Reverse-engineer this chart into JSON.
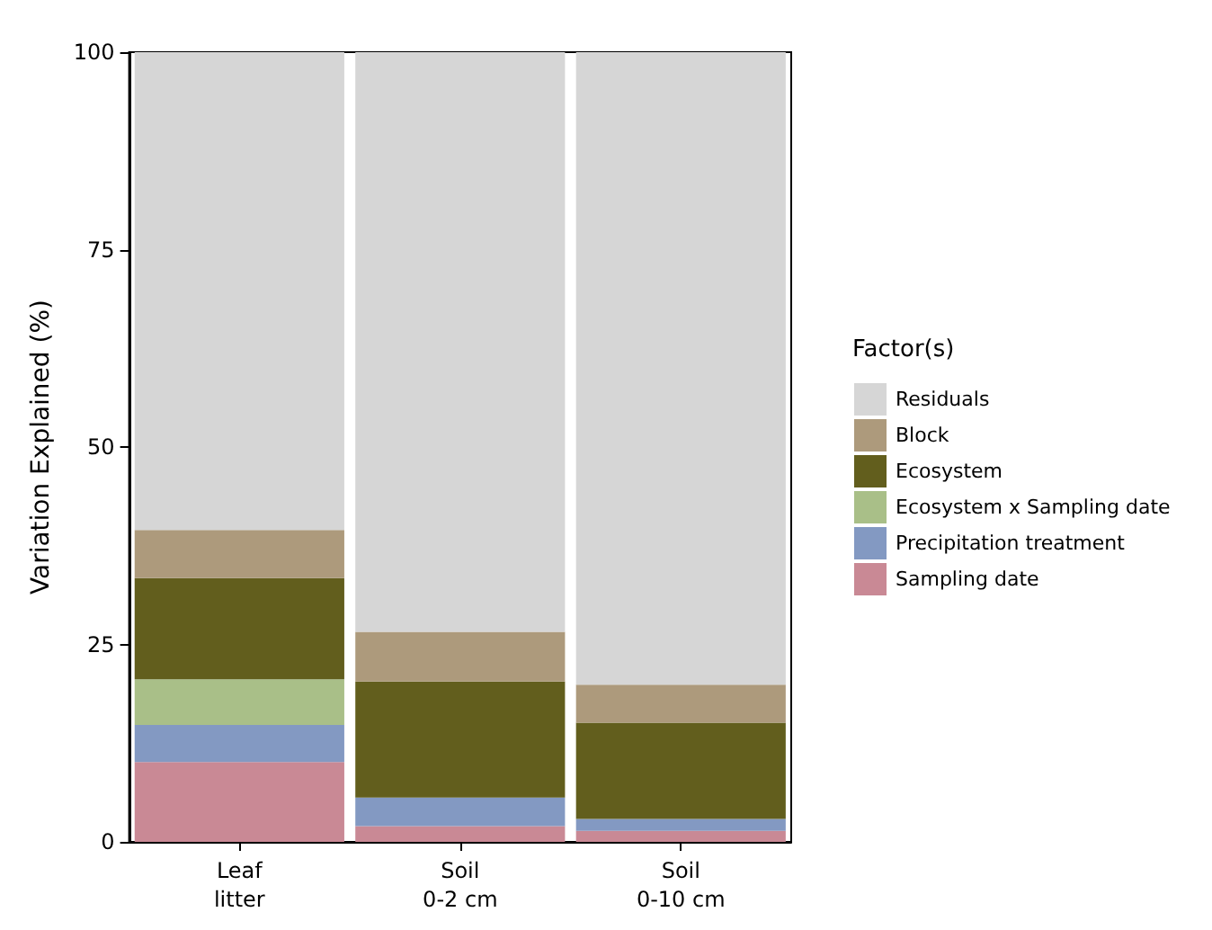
{
  "chart_data": {
    "type": "bar",
    "stacked": true,
    "ylabel": "Variation Explained (%)",
    "legend_title": "Factor(s)",
    "legend": "right",
    "grid": false,
    "categories": [
      "Leaf\nlitter",
      "Soil\n0-2 cm",
      "Soil\n0-10 cm"
    ],
    "ylim": [
      0,
      100
    ],
    "yticks": [
      0,
      25,
      50,
      75,
      100
    ],
    "series": [
      {
        "name": "Sampling date",
        "color": "#c98995",
        "values": [
          10.1,
          2.0,
          1.4
        ]
      },
      {
        "name": "Precipitation treatment",
        "color": "#8399c2",
        "values": [
          4.7,
          3.6,
          1.5
        ]
      },
      {
        "name": "Ecosystem x Sampling date",
        "color": "#a9bf88",
        "values": [
          5.8,
          0,
          0
        ]
      },
      {
        "name": "Ecosystem",
        "color": "#625e1d",
        "values": [
          12.8,
          14.7,
          12.2
        ]
      },
      {
        "name": "Block",
        "color": "#ad9a7c",
        "values": [
          6.1,
          6.3,
          4.8
        ]
      },
      {
        "name": "Residuals",
        "color": "#d6d6d6",
        "values": [
          60.5,
          73.4,
          80.1
        ]
      }
    ]
  }
}
